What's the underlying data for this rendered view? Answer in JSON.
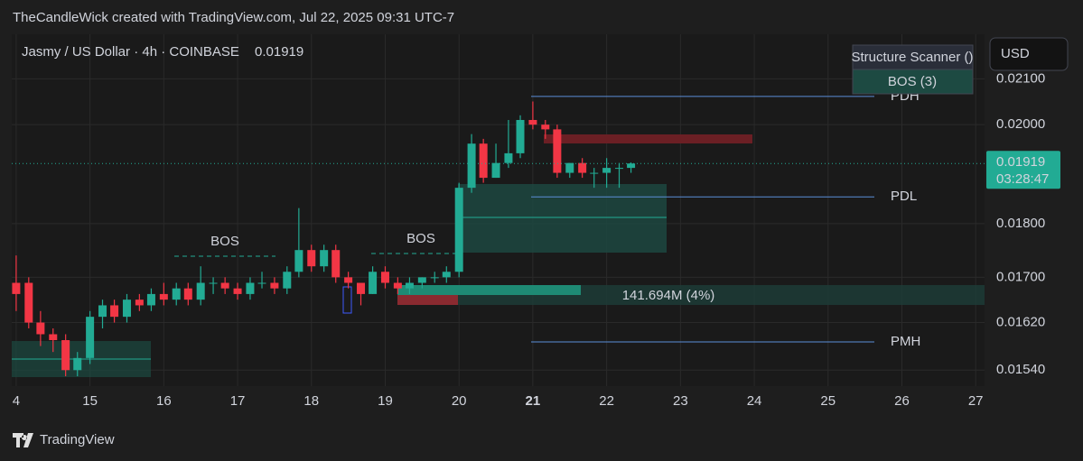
{
  "header": "TheCandleWick created with TradingView.com, Jul 22, 2025 09:31 UTC-7",
  "chart_data": {
    "type": "candlestick",
    "title": "Jasmy / US Dollar · 4h · COINBASE",
    "last_price": 0.01919,
    "countdown": "03:28:47",
    "currency": "USD",
    "log_scale": true,
    "grid": true,
    "up_color": "#22ab94",
    "down_color": "#f23645",
    "x": [
      14.0,
      14.17,
      14.33,
      14.5,
      14.67,
      14.83,
      15.0,
      15.17,
      15.33,
      15.5,
      15.67,
      15.83,
      16.0,
      16.17,
      16.33,
      16.5,
      16.67,
      16.83,
      17.0,
      17.17,
      17.33,
      17.5,
      17.67,
      17.83,
      18.0,
      18.17,
      18.33,
      18.5,
      18.67,
      18.83,
      19.0,
      19.17,
      19.33,
      19.5,
      19.67,
      19.83,
      20.0,
      20.17,
      20.33,
      20.5,
      20.67,
      20.83,
      21.0,
      21.17,
      21.33,
      21.5,
      21.67,
      21.83,
      22.0,
      22.17,
      22.33
    ],
    "open": [
      0.0169,
      0.0169,
      0.0162,
      0.016,
      0.0159,
      0.0154,
      0.0156,
      0.0163,
      0.0165,
      0.0163,
      0.0166,
      0.0165,
      0.0167,
      0.0166,
      0.0168,
      0.0166,
      0.0169,
      0.0169,
      0.0168,
      0.0167,
      0.0169,
      0.0169,
      0.0168,
      0.0171,
      0.0175,
      0.0172,
      0.0175,
      0.017,
      0.0169,
      0.0167,
      0.0171,
      0.0169,
      0.0168,
      0.0169,
      0.017,
      0.017,
      0.0171,
      0.0187,
      0.0196,
      0.0189,
      0.0192,
      0.0194,
      0.0201,
      0.02,
      0.0199,
      0.019,
      0.0192,
      0.019,
      0.019,
      0.0191,
      0.0191
    ],
    "high": [
      0.0174,
      0.017,
      0.0164,
      0.0161,
      0.016,
      0.0157,
      0.0164,
      0.0166,
      0.0166,
      0.0167,
      0.0167,
      0.0168,
      0.0169,
      0.0169,
      0.0169,
      0.0172,
      0.017,
      0.017,
      0.0169,
      0.017,
      0.0171,
      0.017,
      0.0172,
      0.0183,
      0.0176,
      0.0176,
      0.0176,
      0.0171,
      0.0169,
      0.0172,
      0.0172,
      0.017,
      0.017,
      0.017,
      0.0171,
      0.0172,
      0.0188,
      0.0198,
      0.0197,
      0.0196,
      0.0201,
      0.0202,
      0.0205,
      0.0201,
      0.02,
      0.0192,
      0.0193,
      0.0191,
      0.0193,
      0.0192,
      0.01921
    ],
    "low": [
      0.0164,
      0.0161,
      0.0158,
      0.0157,
      0.0153,
      0.0153,
      0.0155,
      0.0161,
      0.0162,
      0.0162,
      0.0164,
      0.0164,
      0.0165,
      0.0165,
      0.0165,
      0.0165,
      0.0167,
      0.0167,
      0.0166,
      0.0166,
      0.0168,
      0.0167,
      0.0167,
      0.017,
      0.0171,
      0.0171,
      0.0169,
      0.0168,
      0.0165,
      0.0167,
      0.0168,
      0.0167,
      0.0167,
      0.0168,
      0.0169,
      0.0169,
      0.017,
      0.0186,
      0.0188,
      0.0189,
      0.0191,
      0.0193,
      0.0199,
      0.0197,
      0.0189,
      0.0189,
      0.0189,
      0.0187,
      0.0187,
      0.0187,
      0.019
    ],
    "close": [
      0.0167,
      0.0162,
      0.016,
      0.0159,
      0.0154,
      0.0156,
      0.0163,
      0.0165,
      0.0163,
      0.0166,
      0.0165,
      0.0167,
      0.0166,
      0.0168,
      0.0166,
      0.0169,
      0.0169,
      0.0168,
      0.0167,
      0.0169,
      0.0169,
      0.0168,
      0.0171,
      0.0175,
      0.0172,
      0.0175,
      0.017,
      0.0169,
      0.0167,
      0.0171,
      0.0169,
      0.0168,
      0.0169,
      0.017,
      0.017,
      0.0171,
      0.0187,
      0.0196,
      0.0189,
      0.0192,
      0.0194,
      0.0201,
      0.02,
      0.0199,
      0.019,
      0.0192,
      0.019,
      0.019,
      0.0191,
      0.0191,
      0.01919
    ],
    "xlim": [
      13.94,
      27.12
    ],
    "xticks": [
      {
        "value": 14,
        "label": "4"
      },
      15,
      16,
      17,
      18,
      19,
      20,
      21,
      22,
      23,
      24,
      25,
      26,
      27
    ],
    "ylim": [
      0.01514,
      0.02202
    ],
    "yticks": [
      {
        "value": 0.0154,
        "label": "0.01540"
      },
      {
        "value": 0.0162,
        "label": "0.01620"
      },
      {
        "value": 0.017,
        "label": "0.01700"
      },
      {
        "value": 0.018,
        "label": "0.01800"
      },
      {
        "value": 0.02,
        "label": "0.02000"
      },
      {
        "value": 0.021,
        "label": "0.02100"
      }
    ],
    "levels": [
      {
        "name": "PDH",
        "value": 0.02061
      },
      {
        "name": "PDL",
        "value": 0.01852
      },
      {
        "name": "PMH",
        "value": 0.01587
      }
    ],
    "annotations": [
      "BOS",
      "BOS",
      "141.694M (4%)"
    ],
    "indicator": "Structure Scanner ()",
    "indicator_value": "BOS (3)"
  },
  "footer": "TradingView"
}
